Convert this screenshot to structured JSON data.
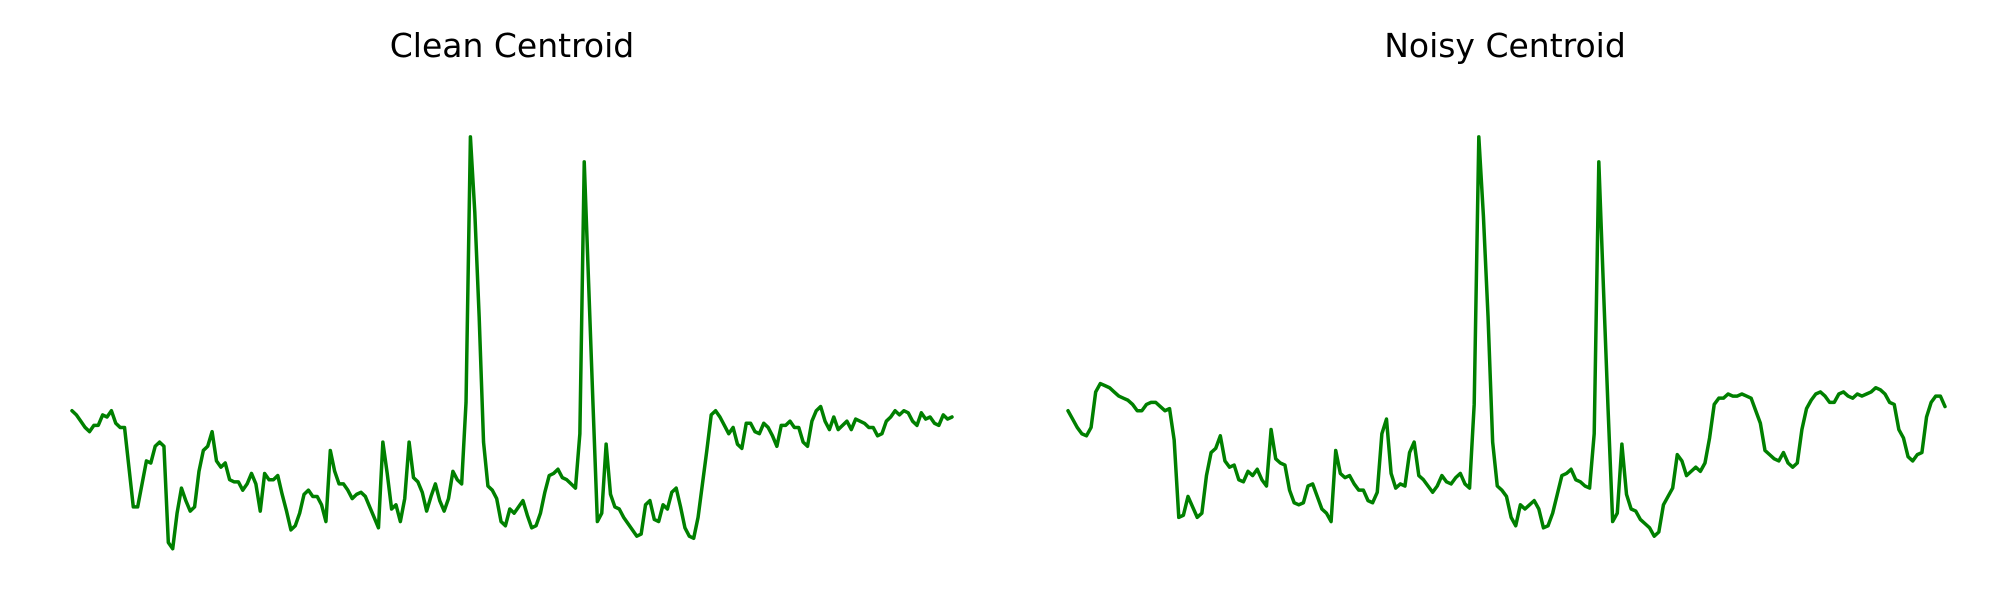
{
  "chart_data": [
    {
      "type": "line",
      "title": "Clean Centroid",
      "xlabel": "",
      "ylabel": "",
      "axes_visible": false,
      "grid": false,
      "x_range": [
        0,
        147
      ],
      "ylim": [
        0,
        1.1
      ],
      "series": [
        {
          "color": "#008000",
          "values": [
            0.345,
            0.335,
            0.32,
            0.305,
            0.295,
            0.31,
            0.31,
            0.335,
            0.33,
            0.345,
            0.315,
            0.305,
            0.305,
            0.21,
            0.115,
            0.115,
            0.17,
            0.225,
            0.22,
            0.26,
            0.27,
            0.26,
            0.03,
            0.015,
            0.1,
            0.16,
            0.13,
            0.105,
            0.115,
            0.2,
            0.25,
            0.26,
            0.295,
            0.225,
            0.21,
            0.22,
            0.18,
            0.175,
            0.175,
            0.155,
            0.17,
            0.195,
            0.17,
            0.105,
            0.195,
            0.18,
            0.18,
            0.19,
            0.145,
            0.105,
            0.06,
            0.07,
            0.1,
            0.145,
            0.155,
            0.14,
            0.14,
            0.12,
            0.08,
            0.25,
            0.2,
            0.17,
            0.17,
            0.155,
            0.135,
            0.145,
            0.15,
            0.14,
            0.115,
            0.09,
            0.065,
            0.27,
            0.195,
            0.11,
            0.12,
            0.08,
            0.135,
            0.27,
            0.185,
            0.175,
            0.15,
            0.105,
            0.14,
            0.17,
            0.13,
            0.105,
            0.135,
            0.2,
            0.18,
            0.17,
            0.365,
            1.0,
            0.82,
            0.57,
            0.27,
            0.165,
            0.155,
            0.135,
            0.08,
            0.07,
            0.11,
            0.1,
            0.115,
            0.13,
            0.095,
            0.065,
            0.07,
            0.1,
            0.15,
            0.19,
            0.195,
            0.205,
            0.185,
            0.18,
            0.17,
            0.16,
            0.29,
            0.94,
            0.65,
            0.36,
            0.08,
            0.1,
            0.265,
            0.145,
            0.115,
            0.11,
            0.09,
            0.075,
            0.06,
            0.045,
            0.05,
            0.12,
            0.13,
            0.085,
            0.08,
            0.12,
            0.11,
            0.15,
            0.16,
            0.115,
            0.065,
            0.045,
            0.04,
            0.09,
            0.17,
            0.25,
            0.335,
            0.345,
            0.33,
            0.31,
            0.29,
            0.305,
            0.265,
            0.255,
            0.315,
            0.315,
            0.295,
            0.29,
            0.315,
            0.305,
            0.285,
            0.26,
            0.31,
            0.31,
            0.32,
            0.305,
            0.305,
            0.27,
            0.26,
            0.32,
            0.345,
            0.355,
            0.32,
            0.3,
            0.33,
            0.3,
            0.31,
            0.32,
            0.3,
            0.325,
            0.32,
            0.315,
            0.305,
            0.305,
            0.285,
            0.29,
            0.32,
            0.33,
            0.345,
            0.335,
            0.345,
            0.34,
            0.32,
            0.31,
            0.34,
            0.325,
            0.33,
            0.315,
            0.31,
            0.335,
            0.325,
            0.33
          ]
        }
      ]
    },
    {
      "type": "line",
      "title": "Noisy Centroid",
      "xlabel": "",
      "ylabel": "",
      "axes_visible": false,
      "grid": false,
      "x_range": [
        0,
        147
      ],
      "ylim": [
        0,
        1.1
      ],
      "series": [
        {
          "color": "#008000",
          "values": [
            0.345,
            0.325,
            0.305,
            0.29,
            0.285,
            0.305,
            0.39,
            0.41,
            0.405,
            0.4,
            0.39,
            0.38,
            0.375,
            0.37,
            0.36,
            0.345,
            0.345,
            0.36,
            0.365,
            0.365,
            0.355,
            0.345,
            0.35,
            0.275,
            0.09,
            0.095,
            0.14,
            0.115,
            0.09,
            0.1,
            0.19,
            0.245,
            0.255,
            0.285,
            0.225,
            0.21,
            0.215,
            0.18,
            0.175,
            0.2,
            0.19,
            0.205,
            0.18,
            0.165,
            0.3,
            0.23,
            0.22,
            0.215,
            0.155,
            0.125,
            0.12,
            0.125,
            0.165,
            0.17,
            0.14,
            0.11,
            0.1,
            0.08,
            0.25,
            0.195,
            0.185,
            0.19,
            0.17,
            0.155,
            0.155,
            0.13,
            0.125,
            0.15,
            0.29,
            0.325,
            0.195,
            0.16,
            0.17,
            0.165,
            0.245,
            0.27,
            0.19,
            0.18,
            0.165,
            0.15,
            0.165,
            0.19,
            0.175,
            0.17,
            0.185,
            0.195,
            0.17,
            0.16,
            0.36,
            1.0,
            0.81,
            0.57,
            0.27,
            0.165,
            0.155,
            0.14,
            0.09,
            0.07,
            0.12,
            0.11,
            0.12,
            0.13,
            0.11,
            0.065,
            0.07,
            0.1,
            0.145,
            0.19,
            0.195,
            0.205,
            0.18,
            0.175,
            0.165,
            0.16,
            0.29,
            0.94,
            0.64,
            0.35,
            0.08,
            0.1,
            0.265,
            0.145,
            0.11,
            0.105,
            0.085,
            0.075,
            0.065,
            0.045,
            0.055,
            0.12,
            0.14,
            0.16,
            0.24,
            0.225,
            0.19,
            0.2,
            0.21,
            0.2,
            0.22,
            0.28,
            0.36,
            0.375,
            0.375,
            0.385,
            0.38,
            0.38,
            0.385,
            0.38,
            0.375,
            0.345,
            0.315,
            0.25,
            0.24,
            0.23,
            0.225,
            0.245,
            0.22,
            0.21,
            0.22,
            0.3,
            0.35,
            0.37,
            0.385,
            0.39,
            0.38,
            0.365,
            0.365,
            0.385,
            0.39,
            0.38,
            0.375,
            0.385,
            0.38,
            0.385,
            0.39,
            0.4,
            0.395,
            0.385,
            0.365,
            0.36,
            0.3,
            0.28,
            0.235,
            0.225,
            0.24,
            0.245,
            0.33,
            0.365,
            0.38,
            0.38,
            0.355
          ]
        }
      ]
    }
  ]
}
